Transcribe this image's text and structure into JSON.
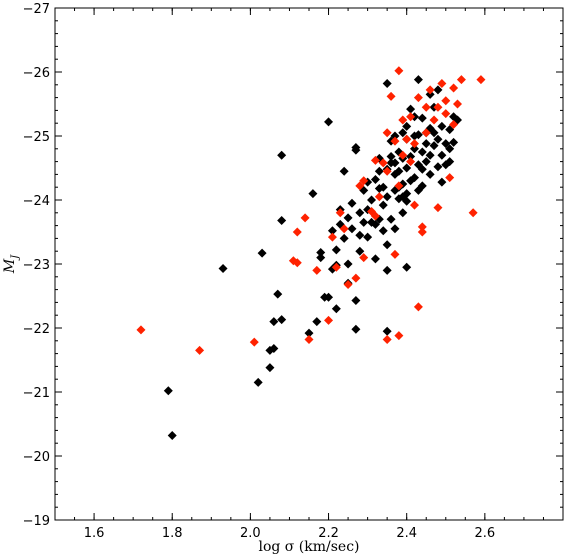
{
  "chart_data": {
    "type": "scatter",
    "xlabel": "log σ (km/sec)",
    "ylabel": "M_J",
    "ylabel_main": "M",
    "ylabel_sub": "J",
    "xlim": [
      1.5,
      2.8
    ],
    "ylim": [
      -19,
      -27
    ],
    "y_inverted": true,
    "grid": false,
    "x_major_ticks": [
      1.6,
      1.8,
      2.0,
      2.2,
      2.4,
      2.6
    ],
    "x_tick_labels": [
      "1.6",
      "1.8",
      "2.0",
      "2.2",
      "2.4",
      "2.6"
    ],
    "y_major_ticks": [
      -19,
      -20,
      -21,
      -22,
      -23,
      -24,
      -25,
      -26,
      -27
    ],
    "y_tick_labels": [
      "−19",
      "−20",
      "−21",
      "−22",
      "−23",
      "−24",
      "−25",
      "−26",
      "−27"
    ],
    "x_minor_step": 0.05,
    "y_minor_step": 0.2,
    "series": [
      {
        "color": "#000000",
        "marker": "diamond",
        "points": [
          [
            1.79,
            -21.02
          ],
          [
            1.8,
            -20.32
          ],
          [
            1.93,
            -22.93
          ],
          [
            2.02,
            -21.15
          ],
          [
            2.03,
            -23.17
          ],
          [
            2.05,
            -21.38
          ],
          [
            2.05,
            -21.65
          ],
          [
            2.06,
            -22.1
          ],
          [
            2.06,
            -21.68
          ],
          [
            2.07,
            -22.53
          ],
          [
            2.08,
            -22.13
          ],
          [
            2.08,
            -23.68
          ],
          [
            2.08,
            -24.7
          ],
          [
            2.16,
            -24.1
          ],
          [
            2.15,
            -21.92
          ],
          [
            2.17,
            -22.1
          ],
          [
            2.18,
            -23.18
          ],
          [
            2.18,
            -23.1
          ],
          [
            2.19,
            -22.48
          ],
          [
            2.2,
            -22.48
          ],
          [
            2.2,
            -25.22
          ],
          [
            2.21,
            -22.92
          ],
          [
            2.21,
            -23.52
          ],
          [
            2.22,
            -22.3
          ],
          [
            2.22,
            -22.98
          ],
          [
            2.22,
            -23.22
          ],
          [
            2.23,
            -23.62
          ],
          [
            2.23,
            -23.85
          ],
          [
            2.24,
            -24.45
          ],
          [
            2.24,
            -23.4
          ],
          [
            2.25,
            -23.0
          ],
          [
            2.25,
            -22.7
          ],
          [
            2.25,
            -23.72
          ],
          [
            2.26,
            -23.55
          ],
          [
            2.26,
            -23.95
          ],
          [
            2.27,
            -24.78
          ],
          [
            2.27,
            -24.82
          ],
          [
            2.27,
            -21.98
          ],
          [
            2.27,
            -22.43
          ],
          [
            2.28,
            -23.8
          ],
          [
            2.28,
            -23.2
          ],
          [
            2.28,
            -23.45
          ],
          [
            2.29,
            -24.15
          ],
          [
            2.29,
            -23.65
          ],
          [
            2.3,
            -23.85
          ],
          [
            2.3,
            -24.28
          ],
          [
            2.3,
            -23.42
          ],
          [
            2.31,
            -23.65
          ],
          [
            2.31,
            -24.0
          ],
          [
            2.32,
            -23.62
          ],
          [
            2.32,
            -24.32
          ],
          [
            2.32,
            -23.08
          ],
          [
            2.33,
            -24.18
          ],
          [
            2.33,
            -24.45
          ],
          [
            2.33,
            -23.7
          ],
          [
            2.33,
            -24.65
          ],
          [
            2.34,
            -24.2
          ],
          [
            2.34,
            -23.52
          ],
          [
            2.34,
            -23.92
          ],
          [
            2.35,
            -23.3
          ],
          [
            2.35,
            -24.48
          ],
          [
            2.35,
            -24.05
          ],
          [
            2.35,
            -21.95
          ],
          [
            2.35,
            -22.9
          ],
          [
            2.36,
            -24.58
          ],
          [
            2.36,
            -24.68
          ],
          [
            2.36,
            -24.92
          ],
          [
            2.36,
            -23.7
          ],
          [
            2.37,
            -24.15
          ],
          [
            2.37,
            -25.0
          ],
          [
            2.37,
            -24.58
          ],
          [
            2.37,
            -23.55
          ],
          [
            2.37,
            -24.4
          ],
          [
            2.38,
            -24.75
          ],
          [
            2.38,
            -24.02
          ],
          [
            2.38,
            -24.2
          ],
          [
            2.38,
            -24.45
          ],
          [
            2.39,
            -23.8
          ],
          [
            2.39,
            -25.05
          ],
          [
            2.39,
            -24.65
          ],
          [
            2.39,
            -24.25
          ],
          [
            2.39,
            -24.05
          ],
          [
            2.4,
            -24.1
          ],
          [
            2.4,
            -23.98
          ],
          [
            2.4,
            -24.95
          ],
          [
            2.4,
            -25.15
          ],
          [
            2.4,
            -24.5
          ],
          [
            2.4,
            -22.95
          ],
          [
            2.41,
            -24.3
          ],
          [
            2.41,
            -25.42
          ],
          [
            2.41,
            -24.68
          ],
          [
            2.42,
            -24.8
          ],
          [
            2.42,
            -25.0
          ],
          [
            2.42,
            -24.35
          ],
          [
            2.42,
            -25.3
          ],
          [
            2.43,
            -24.15
          ],
          [
            2.43,
            -24.55
          ],
          [
            2.43,
            -25.88
          ],
          [
            2.43,
            -25.02
          ],
          [
            2.44,
            -24.75
          ],
          [
            2.44,
            -24.48
          ],
          [
            2.44,
            -24.22
          ],
          [
            2.44,
            -25.28
          ],
          [
            2.45,
            -24.6
          ],
          [
            2.45,
            -25.05
          ],
          [
            2.45,
            -24.88
          ],
          [
            2.46,
            -25.65
          ],
          [
            2.46,
            -24.7
          ],
          [
            2.46,
            -25.12
          ],
          [
            2.46,
            -24.4
          ],
          [
            2.47,
            -25.05
          ],
          [
            2.47,
            -24.85
          ],
          [
            2.47,
            -25.45
          ],
          [
            2.48,
            -24.52
          ],
          [
            2.48,
            -24.95
          ],
          [
            2.48,
            -25.72
          ],
          [
            2.49,
            -24.7
          ],
          [
            2.49,
            -25.15
          ],
          [
            2.49,
            -24.28
          ],
          [
            2.5,
            -24.55
          ],
          [
            2.5,
            -24.88
          ],
          [
            2.51,
            -24.6
          ],
          [
            2.51,
            -25.1
          ],
          [
            2.51,
            -24.8
          ],
          [
            2.52,
            -25.3
          ],
          [
            2.52,
            -24.9
          ],
          [
            2.53,
            -25.25
          ],
          [
            2.35,
            -25.82
          ]
        ]
      },
      {
        "color": "#ff2200",
        "marker": "diamond",
        "points": [
          [
            1.72,
            -21.97
          ],
          [
            1.87,
            -21.65
          ],
          [
            2.01,
            -21.78
          ],
          [
            2.11,
            -23.05
          ],
          [
            2.12,
            -23.02
          ],
          [
            2.12,
            -23.5
          ],
          [
            2.14,
            -23.72
          ],
          [
            2.15,
            -21.82
          ],
          [
            2.17,
            -22.9
          ],
          [
            2.2,
            -22.12
          ],
          [
            2.21,
            -23.42
          ],
          [
            2.22,
            -22.95
          ],
          [
            2.23,
            -23.8
          ],
          [
            2.24,
            -23.55
          ],
          [
            2.25,
            -22.68
          ],
          [
            2.27,
            -22.78
          ],
          [
            2.28,
            -24.22
          ],
          [
            2.29,
            -23.1
          ],
          [
            2.29,
            -24.3
          ],
          [
            2.31,
            -23.82
          ],
          [
            2.32,
            -24.62
          ],
          [
            2.32,
            -23.75
          ],
          [
            2.33,
            -24.05
          ],
          [
            2.34,
            -24.58
          ],
          [
            2.35,
            -25.05
          ],
          [
            2.35,
            -24.45
          ],
          [
            2.35,
            -21.82
          ],
          [
            2.36,
            -25.62
          ],
          [
            2.37,
            -23.15
          ],
          [
            2.37,
            -24.92
          ],
          [
            2.38,
            -26.02
          ],
          [
            2.38,
            -24.22
          ],
          [
            2.38,
            -21.88
          ],
          [
            2.39,
            -24.7
          ],
          [
            2.39,
            -25.25
          ],
          [
            2.4,
            -24.95
          ],
          [
            2.41,
            -24.6
          ],
          [
            2.41,
            -25.3
          ],
          [
            2.42,
            -24.88
          ],
          [
            2.42,
            -23.92
          ],
          [
            2.43,
            -22.33
          ],
          [
            2.43,
            -25.6
          ],
          [
            2.44,
            -23.5
          ],
          [
            2.44,
            -23.58
          ],
          [
            2.45,
            -25.45
          ],
          [
            2.45,
            -25.05
          ],
          [
            2.46,
            -25.72
          ],
          [
            2.47,
            -25.25
          ],
          [
            2.48,
            -25.45
          ],
          [
            2.48,
            -23.88
          ],
          [
            2.49,
            -25.82
          ],
          [
            2.5,
            -25.35
          ],
          [
            2.5,
            -25.55
          ],
          [
            2.51,
            -24.35
          ],
          [
            2.52,
            -25.75
          ],
          [
            2.52,
            -25.18
          ],
          [
            2.53,
            -25.5
          ],
          [
            2.54,
            -25.88
          ],
          [
            2.57,
            -23.8
          ],
          [
            2.59,
            -25.88
          ]
        ]
      }
    ]
  }
}
